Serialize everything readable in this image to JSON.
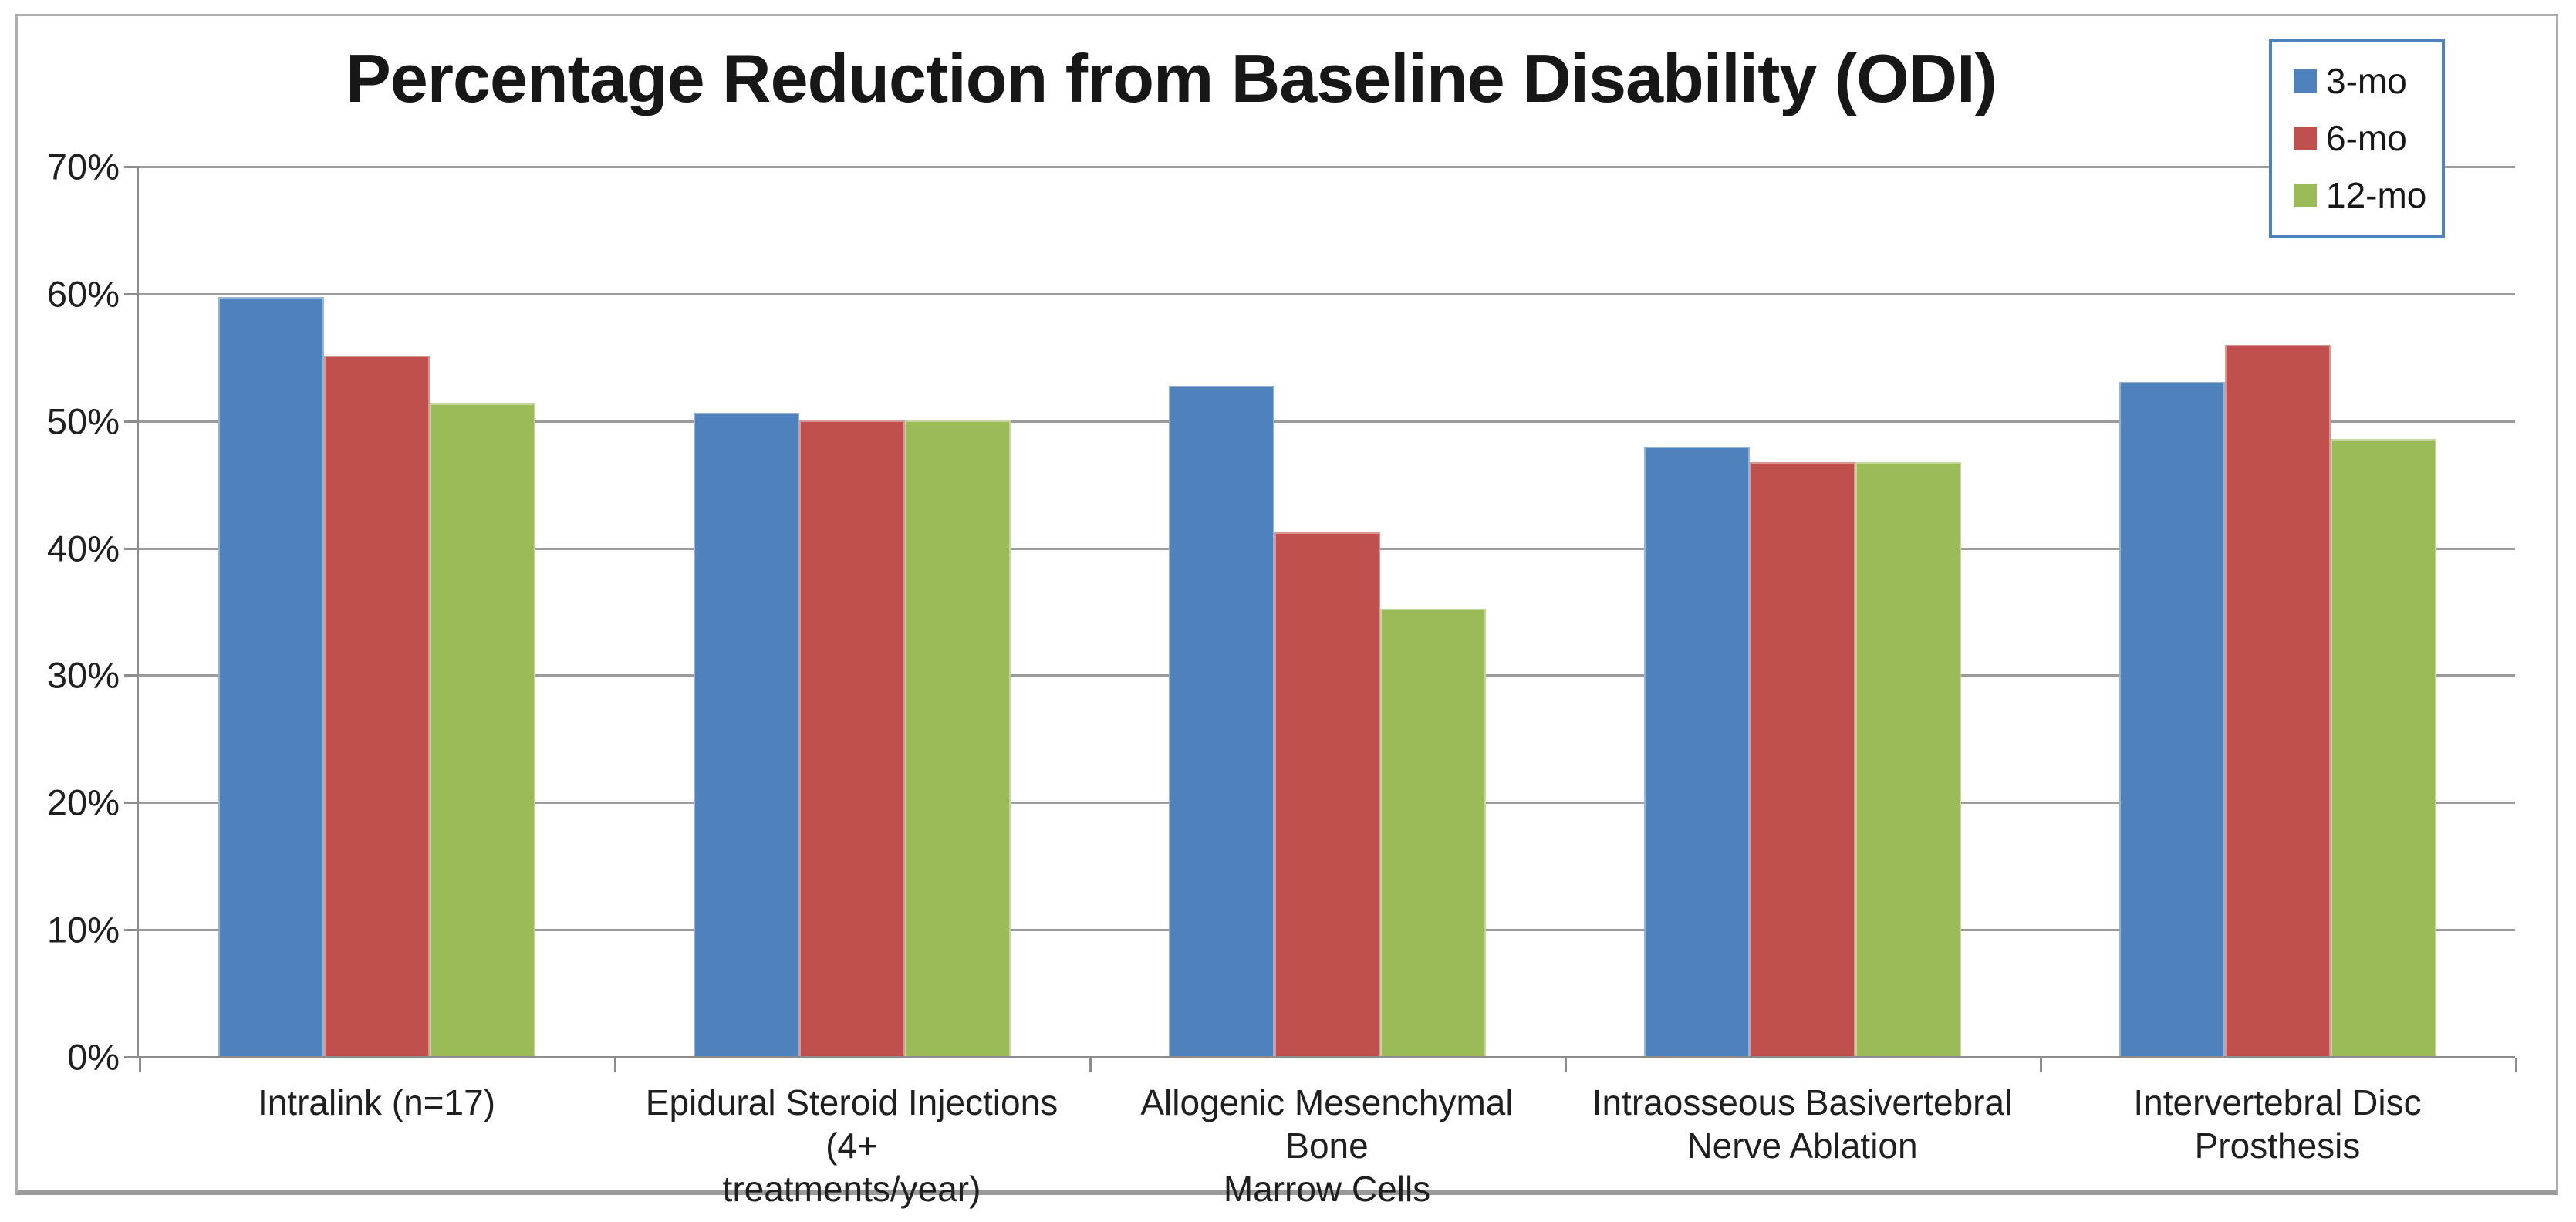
{
  "chart_data": {
    "type": "bar",
    "title": "Percentage Reduction from Baseline Disability (ODI)",
    "categories": [
      "Intralink (n=17)",
      "Epidural Steroid Injections (4+\ntreatments/year)",
      "Allogenic Mesenchymal Bone\nMarrow Cells",
      "Intraosseous Basivertebral\nNerve Ablation",
      "Intervertebral Disc Prosthesis"
    ],
    "series": [
      {
        "name": "3-mo",
        "color": "#4F81BD",
        "values": [
          59.7,
          50.6,
          52.7,
          47.9,
          53.0
        ]
      },
      {
        "name": "6-mo",
        "color": "#C0504D",
        "values": [
          55.1,
          50.0,
          41.2,
          46.7,
          55.9
        ]
      },
      {
        "name": "12-mo",
        "color": "#9BBB59",
        "values": [
          51.3,
          50.0,
          35.2,
          46.7,
          48.5
        ]
      }
    ],
    "xlabel": "",
    "ylabel": "",
    "y_axis": {
      "min": 0,
      "max": 70,
      "step": 10,
      "tick_labels_top_to_bottom": [
        "70%",
        "60%",
        "50%",
        "40%",
        "30%",
        "20%",
        "10%",
        "0%"
      ]
    },
    "grid": true,
    "legend_position": "top-right",
    "legend_border_color": "#4F81BD",
    "gridline_color": "#9b9b9b",
    "axis_color": "#8c8c8c"
  }
}
